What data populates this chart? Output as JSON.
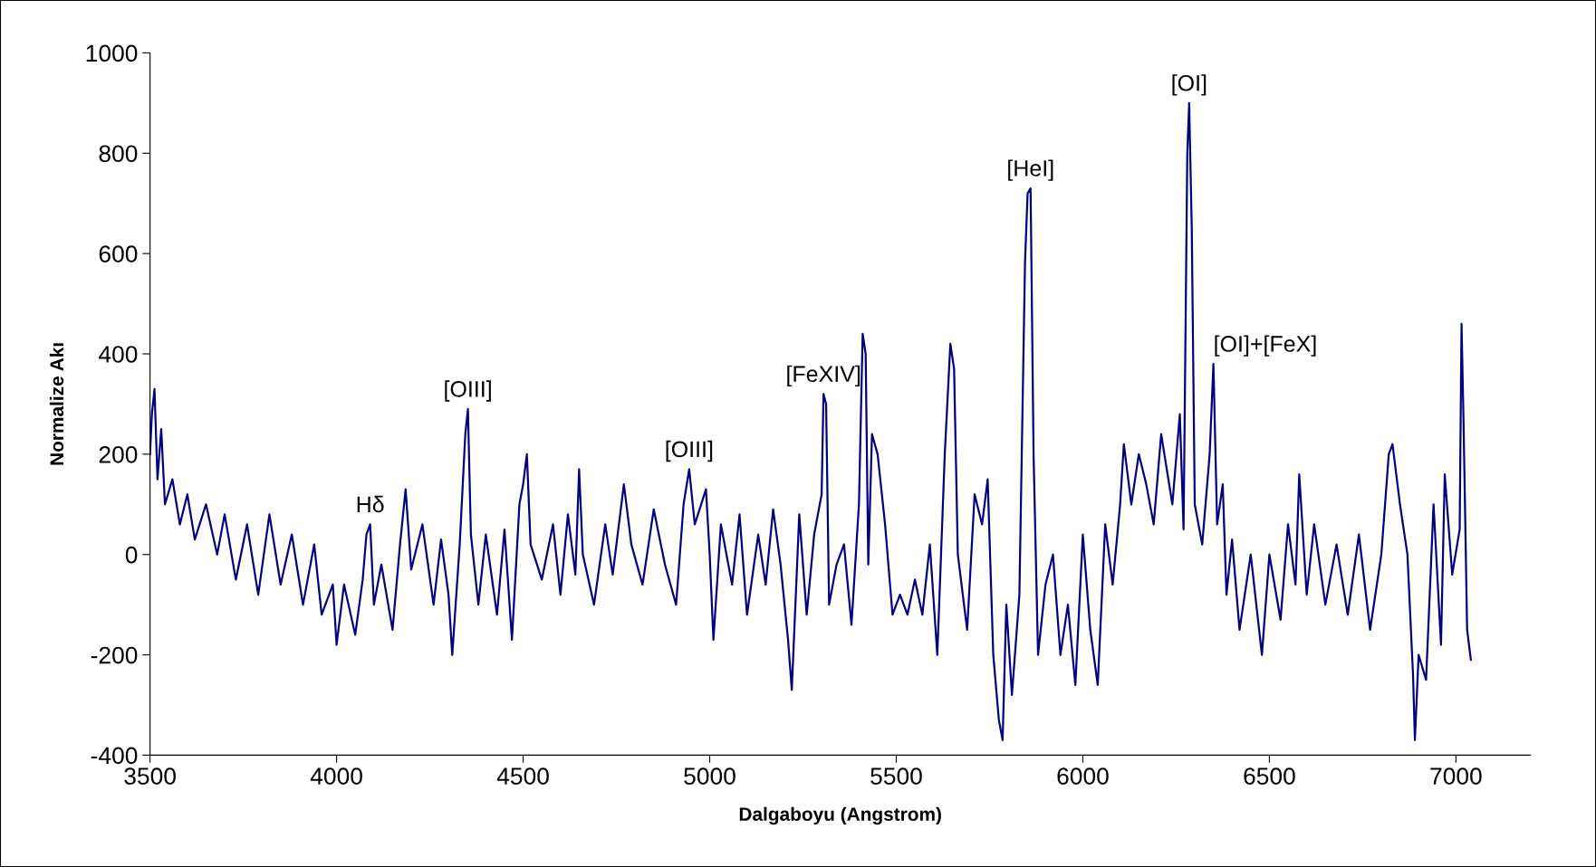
{
  "chart_data": {
    "type": "line",
    "xlabel": "Dalgaboyu (Angstrom)",
    "ylabel": "Normalize Akı",
    "xlim": [
      3500,
      7200
    ],
    "xticks": [
      3500,
      4000,
      4500,
      5000,
      5500,
      6000,
      6500,
      7000
    ],
    "ylim": [
      -400,
      1000
    ],
    "yticks": [
      -400,
      -200,
      0,
      200,
      400,
      600,
      800,
      1000
    ],
    "grid": false,
    "legend": false,
    "marker": "none",
    "line_style": "solid",
    "annotations": [
      {
        "text": "Hδ",
        "x": 4090,
        "y": 60
      },
      {
        "text": "[OIII]",
        "x": 4352,
        "y": 290
      },
      {
        "text": "[OIII]",
        "x": 4945,
        "y": 170
      },
      {
        "text": "[FeXIV]",
        "x": 5305,
        "y": 320
      },
      {
        "text": "[HeI]",
        "x": 5860,
        "y": 730
      },
      {
        "text": "[OI]",
        "x": 6285,
        "y": 900
      },
      {
        "text": "[OI]+[FeX]",
        "x": 6350,
        "y": 380
      }
    ],
    "series": [
      {
        "color": "#000080",
        "x": [
          3500,
          3505,
          3512,
          3520,
          3530,
          3540,
          3560,
          3580,
          3600,
          3620,
          3650,
          3680,
          3700,
          3730,
          3760,
          3790,
          3820,
          3850,
          3880,
          3910,
          3940,
          3960,
          3990,
          4000,
          4020,
          4050,
          4070,
          4080,
          4090,
          4100,
          4120,
          4150,
          4170,
          4185,
          4200,
          4230,
          4260,
          4280,
          4300,
          4310,
          4330,
          4345,
          4352,
          4360,
          4380,
          4400,
          4430,
          4450,
          4470,
          4490,
          4500,
          4510,
          4520,
          4550,
          4580,
          4600,
          4620,
          4640,
          4650,
          4660,
          4690,
          4720,
          4740,
          4770,
          4790,
          4820,
          4850,
          4880,
          4910,
          4930,
          4945,
          4960,
          4990,
          5000,
          5010,
          5030,
          5060,
          5080,
          5100,
          5130,
          5150,
          5170,
          5190,
          5210,
          5220,
          5240,
          5260,
          5280,
          5300,
          5305,
          5312,
          5320,
          5340,
          5360,
          5380,
          5400,
          5410,
          5418,
          5425,
          5435,
          5450,
          5470,
          5490,
          5510,
          5530,
          5550,
          5570,
          5590,
          5610,
          5630,
          5645,
          5655,
          5665,
          5690,
          5710,
          5730,
          5745,
          5760,
          5775,
          5785,
          5795,
          5810,
          5830,
          5845,
          5852,
          5860,
          5868,
          5880,
          5900,
          5920,
          5940,
          5960,
          5980,
          6000,
          6020,
          6040,
          6060,
          6080,
          6100,
          6110,
          6130,
          6150,
          6170,
          6190,
          6210,
          6240,
          6260,
          6270,
          6280,
          6285,
          6292,
          6300,
          6320,
          6340,
          6350,
          6360,
          6375,
          6385,
          6400,
          6420,
          6450,
          6480,
          6500,
          6530,
          6550,
          6570,
          6580,
          6600,
          6620,
          6650,
          6680,
          6710,
          6740,
          6770,
          6800,
          6820,
          6830,
          6850,
          6870,
          6885,
          6890,
          6900,
          6920,
          6940,
          6960,
          6970,
          6990,
          7010,
          7015,
          7020,
          7030,
          7040
        ],
        "values": [
          200,
          280,
          330,
          150,
          250,
          100,
          150,
          60,
          120,
          30,
          100,
          0,
          80,
          -50,
          60,
          -80,
          80,
          -60,
          40,
          -100,
          20,
          -120,
          -60,
          -180,
          -60,
          -160,
          -50,
          40,
          60,
          -100,
          -20,
          -150,
          20,
          130,
          -30,
          60,
          -100,
          30,
          -80,
          -200,
          20,
          240,
          290,
          40,
          -100,
          40,
          -120,
          50,
          -170,
          100,
          140,
          200,
          20,
          -50,
          60,
          -80,
          80,
          -40,
          170,
          0,
          -100,
          60,
          -40,
          140,
          20,
          -60,
          90,
          -20,
          -100,
          100,
          170,
          60,
          130,
          0,
          -170,
          60,
          -60,
          80,
          -120,
          40,
          -60,
          90,
          -20,
          -170,
          -270,
          80,
          -120,
          40,
          120,
          320,
          300,
          -100,
          -20,
          20,
          -140,
          100,
          440,
          400,
          -20,
          240,
          200,
          60,
          -120,
          -80,
          -120,
          -50,
          -120,
          20,
          -200,
          200,
          420,
          370,
          0,
          -150,
          120,
          60,
          150,
          -200,
          -330,
          -370,
          -100,
          -280,
          -80,
          580,
          720,
          730,
          200,
          -200,
          -60,
          0,
          -200,
          -100,
          -260,
          40,
          -150,
          -260,
          60,
          -60,
          100,
          220,
          100,
          200,
          140,
          60,
          240,
          100,
          280,
          50,
          800,
          900,
          650,
          100,
          20,
          200,
          380,
          60,
          140,
          -80,
          30,
          -150,
          0,
          -200,
          0,
          -130,
          60,
          -60,
          160,
          -80,
          60,
          -100,
          20,
          -120,
          40,
          -150,
          0,
          200,
          220,
          100,
          0,
          -240,
          -370,
          -200,
          -250,
          100,
          -180,
          160,
          -40,
          50,
          460,
          280,
          -150,
          -210
        ]
      }
    ]
  }
}
